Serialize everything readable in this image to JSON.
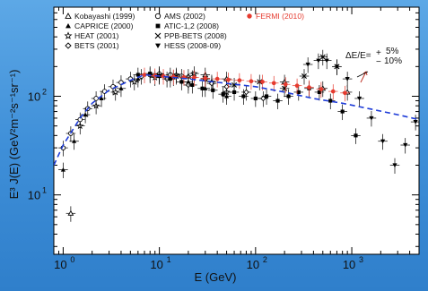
{
  "chart_data": {
    "type": "scatter",
    "title": "",
    "xlabel": "E (GeV)",
    "ylabel": "E³ J(E) (GeV²m⁻²s⁻¹sr⁻¹)",
    "xscale": "log",
    "yscale": "log",
    "xlim": [
      0.8,
      5000
    ],
    "ylim": [
      2.5,
      800
    ],
    "grid": false,
    "legend_position": "top-left",
    "x_ticks": [
      {
        "base": "10",
        "exp": "0"
      },
      {
        "base": "10",
        "exp": "1"
      },
      {
        "base": "10",
        "exp": "2"
      },
      {
        "base": "10",
        "exp": "3"
      }
    ],
    "y_ticks": [
      {
        "base": "10",
        "exp": "1"
      },
      {
        "base": "10",
        "exp": "2"
      }
    ],
    "annotation": {
      "text": "ΔE/E=",
      "plus": "+",
      "minus": "−",
      "upper": "5%",
      "lower": "10%"
    },
    "series": [
      {
        "name": "Kobayashi (1999)",
        "marker": "triangle-open",
        "color": "#000000",
        "points": [
          [
            1.2,
            6.5
          ],
          [
            10,
            170
          ],
          [
            20,
            160
          ],
          [
            30,
            165
          ],
          [
            50,
            150
          ],
          [
            200,
            140
          ],
          [
            500,
            120
          ],
          [
            900,
            110
          ]
        ]
      },
      {
        "name": "CAPRICE (2000)",
        "marker": "triangle-filled",
        "color": "#000000",
        "points": [
          [
            1.0,
            18
          ],
          [
            1.3,
            35
          ],
          [
            1.7,
            65
          ],
          [
            2.5,
            95
          ],
          [
            4,
            120
          ],
          [
            6,
            150
          ],
          [
            10,
            160
          ],
          [
            14,
            155
          ],
          [
            20,
            140
          ],
          [
            30,
            120
          ],
          [
            50,
            100
          ]
        ]
      },
      {
        "name": "HEAT (2001)",
        "marker": "star-open",
        "color": "#000000",
        "points": [
          [
            1.5,
            50
          ],
          [
            2.2,
            80
          ],
          [
            3.5,
            110
          ],
          [
            5.5,
            140
          ],
          [
            9,
            155
          ],
          [
            15,
            165
          ],
          [
            23,
            170
          ],
          [
            35,
            140
          ],
          [
            50,
            110
          ]
        ]
      },
      {
        "name": "BETS (2001)",
        "marker": "diamond-open",
        "color": "#000000",
        "points": [
          [
            12,
            150
          ],
          [
            20,
            130
          ],
          [
            35,
            135
          ],
          [
            50,
            125
          ],
          [
            80,
            110
          ],
          [
            120,
            95
          ]
        ]
      },
      {
        "name": "AMS (2002)",
        "marker": "circle-open",
        "color": "#000000",
        "points": [
          [
            1.0,
            30
          ],
          [
            1.2,
            42
          ],
          [
            1.5,
            58
          ],
          [
            1.8,
            75
          ],
          [
            2.2,
            95
          ],
          [
            2.7,
            112
          ],
          [
            3.3,
            125
          ],
          [
            4,
            138
          ],
          [
            5,
            150
          ],
          [
            6.5,
            160
          ],
          [
            8,
            165
          ],
          [
            10,
            168
          ],
          [
            13,
            165
          ],
          [
            17,
            160
          ],
          [
            22,
            155
          ],
          [
            30,
            150
          ]
        ]
      },
      {
        "name": "ATIC-1,2 (2008)",
        "marker": "square-filled",
        "color": "#000000",
        "points": [
          [
            6,
            165
          ],
          [
            8,
            170
          ],
          [
            10,
            162
          ],
          [
            13,
            150
          ],
          [
            17,
            140
          ],
          [
            22,
            130
          ],
          [
            28,
            120
          ],
          [
            36,
            115
          ],
          [
            46,
            105
          ],
          [
            60,
            110
          ],
          [
            75,
            100
          ],
          [
            100,
            95
          ],
          [
            130,
            100
          ],
          [
            170,
            90
          ],
          [
            220,
            100
          ],
          [
            280,
            110
          ],
          [
            360,
            120
          ],
          [
            460,
            110
          ],
          [
            600,
            90
          ],
          [
            800,
            70
          ],
          [
            1100,
            40
          ]
        ]
      },
      {
        "name": "PPB-BETS (2008)",
        "marker": "cross",
        "color": "#000000",
        "points": [
          [
            15,
            160
          ],
          [
            30,
            150
          ],
          [
            60,
            130
          ],
          [
            110,
            140
          ],
          [
            200,
            120
          ],
          [
            320,
            160
          ],
          [
            500,
            250
          ],
          [
            700,
            200
          ]
        ]
      },
      {
        "name": "HESS (2008-09)",
        "marker": "triangle-down-filled",
        "color": "#000000",
        "points": [
          [
            350,
            210
          ],
          [
            450,
            230
          ],
          [
            550,
            230
          ],
          [
            700,
            200
          ],
          [
            900,
            150
          ],
          [
            1200,
            95
          ],
          [
            1600,
            60
          ],
          [
            2100,
            35
          ],
          [
            2800,
            20
          ],
          [
            3600,
            32
          ],
          [
            4600,
            55
          ]
        ]
      },
      {
        "name": "FERMI (2010)",
        "marker": "circle-filled",
        "color": "#e63a2e",
        "points": [
          [
            7,
            165
          ],
          [
            9,
            162
          ],
          [
            11,
            160
          ],
          [
            14,
            158
          ],
          [
            18,
            156
          ],
          [
            23,
            155
          ],
          [
            30,
            152
          ],
          [
            40,
            150
          ],
          [
            52,
            147
          ],
          [
            68,
            145
          ],
          [
            90,
            142
          ],
          [
            118,
            140
          ],
          [
            155,
            136
          ],
          [
            205,
            132
          ],
          [
            270,
            128
          ],
          [
            360,
            123
          ],
          [
            480,
            118
          ],
          [
            640,
            112
          ],
          [
            850,
            108
          ]
        ]
      },
      {
        "name": "",
        "marker": "dashed-line",
        "color": "#1e3cd8",
        "points": [
          [
            0.8,
            20
          ],
          [
            1.0,
            32
          ],
          [
            1.5,
            60
          ],
          [
            2.0,
            85
          ],
          [
            3.0,
            115
          ],
          [
            5.0,
            145
          ],
          [
            7.0,
            165
          ],
          [
            10,
            160
          ],
          [
            20,
            150
          ],
          [
            50,
            135
          ],
          [
            100,
            125
          ],
          [
            200,
            110
          ],
          [
            400,
            95
          ],
          [
            800,
            85
          ],
          [
            1500,
            75
          ],
          [
            3000,
            65
          ],
          [
            5000,
            58
          ]
        ]
      }
    ]
  }
}
